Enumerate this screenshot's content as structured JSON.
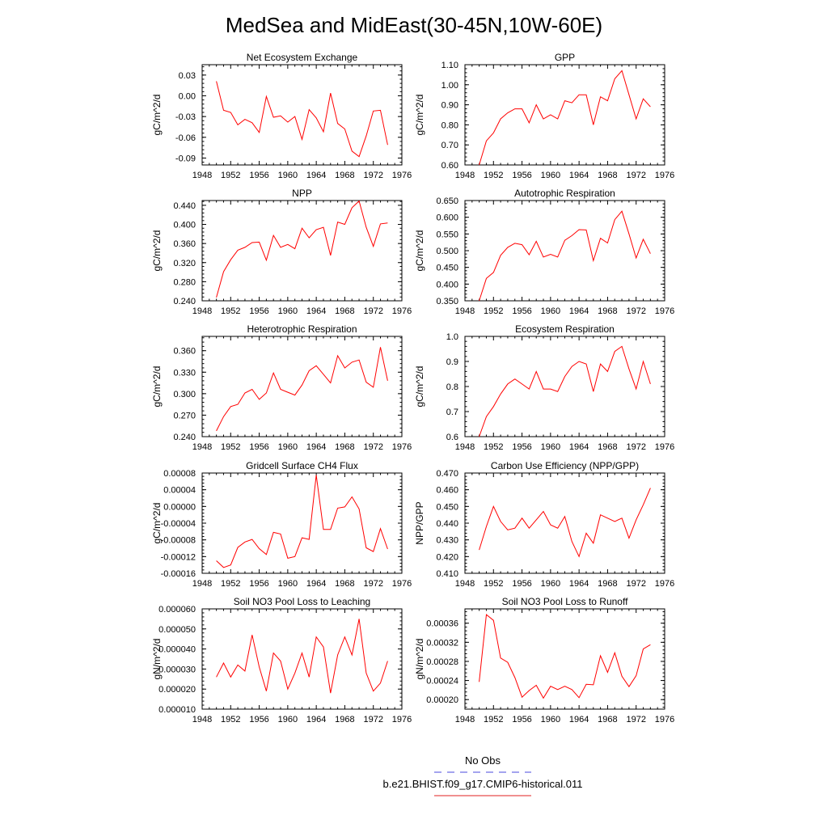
{
  "figure": {
    "title": "MedSea and MidEast(30-45N,10W-60E)",
    "legend": {
      "entries": [
        {
          "label": "No Obs",
          "color": "#4a4adc",
          "dash": true
        },
        {
          "label": "b.e21.BHIST.f09_g17.CMIP6-historical.011",
          "color": "#e02020",
          "dash": false
        }
      ]
    }
  },
  "series_color": "#ff0000",
  "chart_data": [
    {
      "type": "line",
      "title": "Net Ecosystem Exchange",
      "ylabel": "gC/m^2/d",
      "xlim": [
        1948,
        1976
      ],
      "xticks": [
        1948,
        1952,
        1956,
        1960,
        1964,
        1968,
        1972,
        1976
      ],
      "ylim": [
        -0.1,
        0.045
      ],
      "yticks": [
        -0.09,
        -0.06,
        -0.03,
        0.0,
        0.03
      ],
      "ytick_labels": [
        "-0.09",
        "-0.06",
        "-0.03",
        "0.00",
        "0.03"
      ],
      "x": [
        1950,
        1951,
        1952,
        1953,
        1954,
        1955,
        1956,
        1957,
        1958,
        1959,
        1960,
        1961,
        1962,
        1963,
        1964,
        1965,
        1966,
        1967,
        1968,
        1969,
        1970,
        1971,
        1972,
        1973,
        1974
      ],
      "series": [
        {
          "name": "",
          "values": [
            0.021,
            -0.021,
            -0.024,
            -0.042,
            -0.034,
            -0.039,
            -0.053,
            -0.001,
            -0.031,
            -0.029,
            -0.038,
            -0.03,
            -0.063,
            -0.02,
            -0.032,
            -0.052,
            0.004,
            -0.04,
            -0.048,
            -0.08,
            -0.088,
            -0.058,
            -0.022,
            -0.021,
            -0.071
          ]
        }
      ]
    },
    {
      "type": "line",
      "title": "GPP",
      "ylabel": "gC/m^2/d",
      "xlim": [
        1948,
        1976
      ],
      "xticks": [
        1948,
        1952,
        1956,
        1960,
        1964,
        1968,
        1972,
        1976
      ],
      "ylim": [
        0.6,
        1.1
      ],
      "yticks": [
        0.6,
        0.7,
        0.8,
        0.9,
        1.0,
        1.1
      ],
      "ytick_labels": [
        "0.60",
        "0.70",
        "0.80",
        "0.90",
        "1.00",
        "1.10"
      ],
      "x": [
        1950,
        1951,
        1952,
        1953,
        1954,
        1955,
        1956,
        1957,
        1958,
        1959,
        1960,
        1961,
        1962,
        1963,
        1964,
        1965,
        1966,
        1967,
        1968,
        1969,
        1970,
        1971,
        1972,
        1973,
        1974
      ],
      "series": [
        {
          "name": "",
          "values": [
            0.6,
            0.72,
            0.76,
            0.83,
            0.86,
            0.88,
            0.88,
            0.81,
            0.9,
            0.83,
            0.85,
            0.83,
            0.92,
            0.91,
            0.95,
            0.95,
            0.8,
            0.94,
            0.92,
            1.03,
            1.07,
            0.95,
            0.83,
            0.93,
            0.89
          ]
        }
      ]
    },
    {
      "type": "line",
      "title": "NPP",
      "ylabel": "gC/m^2/d",
      "xlim": [
        1948,
        1976
      ],
      "xticks": [
        1948,
        1952,
        1956,
        1960,
        1964,
        1968,
        1972,
        1976
      ],
      "ylim": [
        0.24,
        0.45
      ],
      "yticks": [
        0.24,
        0.28,
        0.32,
        0.36,
        0.4,
        0.44
      ],
      "ytick_labels": [
        "0.240",
        "0.280",
        "0.320",
        "0.360",
        "0.400",
        "0.440"
      ],
      "x": [
        1950,
        1951,
        1952,
        1953,
        1954,
        1955,
        1956,
        1957,
        1958,
        1959,
        1960,
        1961,
        1962,
        1963,
        1964,
        1965,
        1966,
        1967,
        1968,
        1969,
        1970,
        1971,
        1972,
        1973,
        1974
      ],
      "series": [
        {
          "name": "",
          "values": [
            0.247,
            0.301,
            0.326,
            0.346,
            0.352,
            0.362,
            0.363,
            0.325,
            0.377,
            0.352,
            0.358,
            0.349,
            0.392,
            0.372,
            0.389,
            0.394,
            0.335,
            0.405,
            0.4,
            0.435,
            0.449,
            0.394,
            0.354,
            0.401,
            0.403
          ]
        }
      ]
    },
    {
      "type": "line",
      "title": "Autotrophic Respiration",
      "ylabel": "gC/m^2/d",
      "xlim": [
        1948,
        1976
      ],
      "xticks": [
        1948,
        1952,
        1956,
        1960,
        1964,
        1968,
        1972,
        1976
      ],
      "ylim": [
        0.35,
        0.65
      ],
      "yticks": [
        0.35,
        0.4,
        0.45,
        0.5,
        0.55,
        0.6,
        0.65
      ],
      "ytick_labels": [
        "0.350",
        "0.400",
        "0.450",
        "0.500",
        "0.550",
        "0.600",
        "0.650"
      ],
      "x": [
        1950,
        1951,
        1952,
        1953,
        1954,
        1955,
        1956,
        1957,
        1958,
        1959,
        1960,
        1961,
        1962,
        1963,
        1964,
        1965,
        1966,
        1967,
        1968,
        1969,
        1970,
        1971,
        1972,
        1973,
        1974
      ],
      "series": [
        {
          "name": "",
          "values": [
            0.35,
            0.417,
            0.435,
            0.486,
            0.51,
            0.522,
            0.518,
            0.488,
            0.528,
            0.481,
            0.489,
            0.481,
            0.531,
            0.545,
            0.563,
            0.562,
            0.47,
            0.537,
            0.523,
            0.593,
            0.618,
            0.55,
            0.478,
            0.534,
            0.491
          ]
        }
      ]
    },
    {
      "type": "line",
      "title": "Heterotrophic Respiration",
      "ylabel": "gC/m^2/d",
      "xlim": [
        1948,
        1976
      ],
      "xticks": [
        1948,
        1952,
        1956,
        1960,
        1964,
        1968,
        1972,
        1976
      ],
      "ylim": [
        0.24,
        0.38
      ],
      "yticks": [
        0.24,
        0.27,
        0.3,
        0.33,
        0.36
      ],
      "ytick_labels": [
        "0.240",
        "0.270",
        "0.300",
        "0.330",
        "0.360"
      ],
      "x": [
        1950,
        1951,
        1952,
        1953,
        1954,
        1955,
        1956,
        1957,
        1958,
        1959,
        1960,
        1961,
        1962,
        1963,
        1964,
        1965,
        1966,
        1967,
        1968,
        1969,
        1970,
        1971,
        1972,
        1973,
        1974
      ],
      "series": [
        {
          "name": "",
          "values": [
            0.248,
            0.268,
            0.282,
            0.285,
            0.301,
            0.306,
            0.292,
            0.301,
            0.329,
            0.306,
            0.302,
            0.298,
            0.312,
            0.332,
            0.339,
            0.327,
            0.315,
            0.353,
            0.336,
            0.344,
            0.347,
            0.316,
            0.309,
            0.365,
            0.318
          ]
        }
      ]
    },
    {
      "type": "line",
      "title": "Ecosystem Respiration",
      "ylabel": "gC/m^2/d",
      "xlim": [
        1948,
        1976
      ],
      "xticks": [
        1948,
        1952,
        1956,
        1960,
        1964,
        1968,
        1972,
        1976
      ],
      "ylim": [
        0.6,
        1.0
      ],
      "yticks": [
        0.6,
        0.7,
        0.8,
        0.9,
        1.0
      ],
      "ytick_labels": [
        "0.6",
        "0.7",
        "0.8",
        "0.9",
        "1.0"
      ],
      "x": [
        1950,
        1951,
        1952,
        1953,
        1954,
        1955,
        1956,
        1957,
        1958,
        1959,
        1960,
        1961,
        1962,
        1963,
        1964,
        1965,
        1966,
        1967,
        1968,
        1969,
        1970,
        1971,
        1972,
        1973,
        1974
      ],
      "series": [
        {
          "name": "",
          "values": [
            0.6,
            0.68,
            0.72,
            0.77,
            0.81,
            0.83,
            0.81,
            0.79,
            0.86,
            0.79,
            0.79,
            0.78,
            0.84,
            0.88,
            0.9,
            0.89,
            0.78,
            0.89,
            0.86,
            0.94,
            0.96,
            0.87,
            0.79,
            0.9,
            0.81
          ]
        }
      ]
    },
    {
      "type": "line",
      "title": "Gridcell Surface CH4 Flux",
      "ylabel": "gC/m^2/d",
      "xlim": [
        1948,
        1976
      ],
      "xticks": [
        1948,
        1952,
        1956,
        1960,
        1964,
        1968,
        1972,
        1976
      ],
      "ylim": [
        -0.00016,
        8e-05
      ],
      "yticks": [
        -0.00016,
        -0.00012,
        -8e-05,
        -4e-05,
        0.0,
        4e-05,
        8e-05
      ],
      "ytick_labels": [
        "-0.00016",
        "-0.00012",
        "-0.00008",
        "-0.00004",
        "0.00000",
        "0.00004",
        "0.00008"
      ],
      "x": [
        1950,
        1951,
        1952,
        1953,
        1954,
        1955,
        1956,
        1957,
        1958,
        1959,
        1960,
        1961,
        1962,
        1963,
        1964,
        1965,
        1966,
        1967,
        1968,
        1969,
        1970,
        1971,
        1972,
        1973,
        1974
      ],
      "series": [
        {
          "name": "",
          "values": [
            -0.00013,
            -0.000146,
            -0.00014,
            -9.8e-05,
            -8.5e-05,
            -7.9e-05,
            -0.000101,
            -0.000115,
            -6.2e-05,
            -6.6e-05,
            -0.000124,
            -0.00012,
            -7.5e-05,
            -7.9e-05,
            7.5e-05,
            -5.5e-05,
            -5.5e-05,
            -4e-06,
            -1e-06,
            2.3e-05,
            -6e-06,
            -9.9e-05,
            -0.000108,
            -5.3e-05,
            -0.000102
          ]
        }
      ]
    },
    {
      "type": "line",
      "title": "Carbon Use Efficiency (NPP/GPP)",
      "ylabel": "NPP/GPP",
      "xlim": [
        1948,
        1976
      ],
      "xticks": [
        1948,
        1952,
        1956,
        1960,
        1964,
        1968,
        1972,
        1976
      ],
      "ylim": [
        0.41,
        0.47
      ],
      "yticks": [
        0.41,
        0.42,
        0.43,
        0.44,
        0.45,
        0.46,
        0.47
      ],
      "ytick_labels": [
        "0.410",
        "0.420",
        "0.430",
        "0.440",
        "0.450",
        "0.460",
        "0.470"
      ],
      "x": [
        1950,
        1951,
        1952,
        1953,
        1954,
        1955,
        1956,
        1957,
        1958,
        1959,
        1960,
        1961,
        1962,
        1963,
        1964,
        1965,
        1966,
        1967,
        1968,
        1969,
        1970,
        1971,
        1972,
        1973,
        1974
      ],
      "series": [
        {
          "name": "",
          "values": [
            0.424,
            0.438,
            0.45,
            0.441,
            0.436,
            0.437,
            0.443,
            0.437,
            0.442,
            0.447,
            0.439,
            0.437,
            0.444,
            0.429,
            0.42,
            0.434,
            0.428,
            0.445,
            0.443,
            0.441,
            0.443,
            0.431,
            0.442,
            0.451,
            0.461
          ]
        }
      ]
    },
    {
      "type": "line",
      "title": "Soil NO3 Pool Loss to Leaching",
      "ylabel": "gN/m^2/d",
      "xlim": [
        1948,
        1976
      ],
      "xticks": [
        1948,
        1952,
        1956,
        1960,
        1964,
        1968,
        1972,
        1976
      ],
      "ylim": [
        1e-05,
        6e-05
      ],
      "yticks": [
        1e-05,
        2e-05,
        3e-05,
        4e-05,
        5e-05,
        6e-05
      ],
      "ytick_labels": [
        "0.000010",
        "0.000020",
        "0.000030",
        "0.000040",
        "0.000050",
        "0.000060"
      ],
      "x": [
        1950,
        1951,
        1952,
        1953,
        1954,
        1955,
        1956,
        1957,
        1958,
        1959,
        1960,
        1961,
        1962,
        1963,
        1964,
        1965,
        1966,
        1967,
        1968,
        1969,
        1970,
        1971,
        1972,
        1973,
        1974
      ],
      "series": [
        {
          "name": "",
          "values": [
            2.6e-05,
            3.3e-05,
            2.6e-05,
            3.2e-05,
            2.9e-05,
            4.7e-05,
            3.1e-05,
            1.9e-05,
            3.8e-05,
            3.4e-05,
            2e-05,
            2.8e-05,
            3.8e-05,
            2.6e-05,
            4.6e-05,
            4.1e-05,
            1.8e-05,
            3.7e-05,
            4.6e-05,
            3.7e-05,
            5.5e-05,
            2.8e-05,
            1.9e-05,
            2.3e-05,
            3.4e-05
          ]
        }
      ]
    },
    {
      "type": "line",
      "title": "Soil NO3 Pool Loss to Runoff",
      "ylabel": "gN/m^2/d",
      "xlim": [
        1948,
        1976
      ],
      "xticks": [
        1948,
        1952,
        1956,
        1960,
        1964,
        1968,
        1972,
        1976
      ],
      "ylim": [
        0.00018,
        0.00039
      ],
      "yticks": [
        0.0002,
        0.00024,
        0.00028,
        0.00032,
        0.00036
      ],
      "ytick_labels": [
        "0.00020",
        "0.00024",
        "0.00028",
        "0.00032",
        "0.00036"
      ],
      "x": [
        1950,
        1951,
        1952,
        1953,
        1954,
        1955,
        1956,
        1957,
        1958,
        1959,
        1960,
        1961,
        1962,
        1963,
        1964,
        1965,
        1966,
        1967,
        1968,
        1969,
        1970,
        1971,
        1972,
        1973,
        1974
      ],
      "series": [
        {
          "name": "",
          "values": [
            0.000237,
            0.000378,
            0.000366,
            0.000287,
            0.000278,
            0.000246,
            0.000205,
            0.000219,
            0.00023,
            0.000203,
            0.000228,
            0.000221,
            0.000228,
            0.000221,
            0.000204,
            0.000232,
            0.000231,
            0.000292,
            0.000257,
            0.000298,
            0.000249,
            0.000227,
            0.00025,
            0.000306,
            0.000315
          ]
        }
      ]
    }
  ]
}
